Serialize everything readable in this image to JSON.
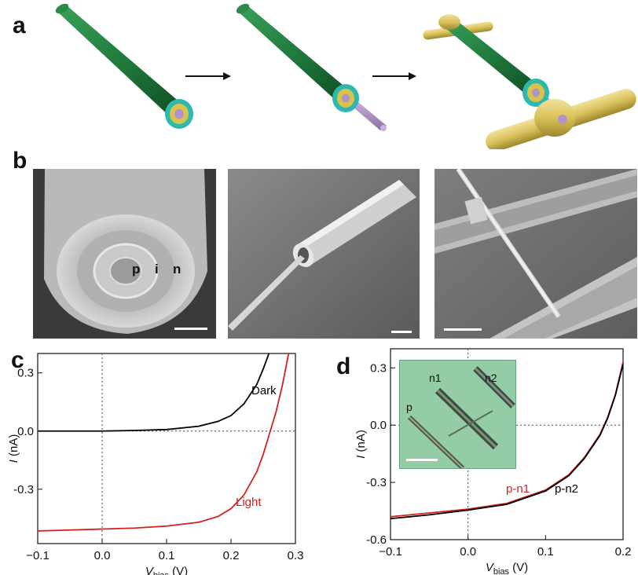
{
  "panel_labels": {
    "a": "a",
    "b": "b",
    "c": "c",
    "d": "d"
  },
  "panel_b": {
    "image1_letters": [
      "p",
      "i",
      "n"
    ]
  },
  "panel_d_inset": {
    "labels": [
      "n1",
      "n2",
      "p"
    ]
  },
  "colors": {
    "shell_green": "#1f7a3c",
    "inner_cyan": "#2fb8b0",
    "inner_yellow": "#d8c44a",
    "core_purple": "#b294c4",
    "contact_gold": "#d9c15a",
    "light_curve": "#d42020",
    "dark_curve": "#000000",
    "inset_bg": "#8fc9a0"
  },
  "chart_data": [
    {
      "type": "line",
      "panel": "c",
      "xlabel": "V_bias (V)",
      "xlabel_main": "V",
      "xlabel_sub": "bias",
      "xlabel_unit": " (V)",
      "ylabel": "I (nA)",
      "ylabel_main": "I",
      "ylabel_unit": " (nA)",
      "xlim": [
        -0.1,
        0.3
      ],
      "ylim": [
        -0.58,
        0.4
      ],
      "xticks": [
        -0.1,
        0.0,
        0.1,
        0.2,
        0.3
      ],
      "xtick_labels": [
        "−0.1",
        "0.0",
        "0.1",
        "0.2",
        "0.3"
      ],
      "yticks": [
        -0.3,
        0.0,
        0.3
      ],
      "ytick_labels": [
        "-0.3",
        "0.0",
        "0.3"
      ],
      "series": [
        {
          "name": "Dark",
          "color": "#000000",
          "x": [
            -0.1,
            -0.05,
            0.0,
            0.05,
            0.1,
            0.15,
            0.18,
            0.2,
            0.22,
            0.24,
            0.25,
            0.26
          ],
          "y": [
            0.0,
            0.0,
            0.0,
            0.003,
            0.008,
            0.025,
            0.05,
            0.08,
            0.14,
            0.24,
            0.32,
            0.41
          ]
        },
        {
          "name": "Light",
          "color": "#d42020",
          "x": [
            -0.1,
            -0.05,
            0.0,
            0.05,
            0.1,
            0.15,
            0.18,
            0.2,
            0.22,
            0.24,
            0.25,
            0.26,
            0.27,
            0.28,
            0.29
          ],
          "y": [
            -0.515,
            -0.51,
            -0.505,
            -0.5,
            -0.49,
            -0.47,
            -0.44,
            -0.4,
            -0.33,
            -0.21,
            -0.12,
            -0.01,
            0.1,
            0.24,
            0.41
          ]
        }
      ]
    },
    {
      "type": "line",
      "panel": "d",
      "xlabel": "V_bias (V)",
      "xlabel_main": "V",
      "xlabel_sub": "bias",
      "xlabel_unit": " (V)",
      "ylabel": "I (nA)",
      "ylabel_main": "I",
      "ylabel_unit": " (nA)",
      "xlim": [
        -0.1,
        0.2
      ],
      "ylim": [
        -0.6,
        0.4
      ],
      "xticks": [
        -0.1,
        0.0,
        0.1,
        0.2
      ],
      "xtick_labels": [
        "−0.1",
        "0.0",
        "0.1",
        "0.2"
      ],
      "yticks": [
        -0.6,
        -0.3,
        0.0,
        0.3
      ],
      "ytick_labels": [
        "-0.6",
        "-0.3",
        "0.0",
        "0.3"
      ],
      "series": [
        {
          "name": "p-n1",
          "color": "#d42020",
          "x": [
            -0.1,
            -0.05,
            0.0,
            0.05,
            0.1,
            0.13,
            0.15,
            0.17,
            0.18,
            0.19,
            0.2
          ],
          "y": [
            -0.48,
            -0.46,
            -0.44,
            -0.41,
            -0.34,
            -0.26,
            -0.17,
            -0.05,
            0.04,
            0.16,
            0.33
          ]
        },
        {
          "name": "p-n2",
          "color": "#000000",
          "x": [
            -0.1,
            -0.05,
            0.0,
            0.05,
            0.1,
            0.13,
            0.15,
            0.17,
            0.18,
            0.19,
            0.2
          ],
          "y": [
            -0.49,
            -0.47,
            -0.445,
            -0.415,
            -0.345,
            -0.265,
            -0.175,
            -0.055,
            0.035,
            0.155,
            0.32
          ]
        }
      ]
    }
  ]
}
